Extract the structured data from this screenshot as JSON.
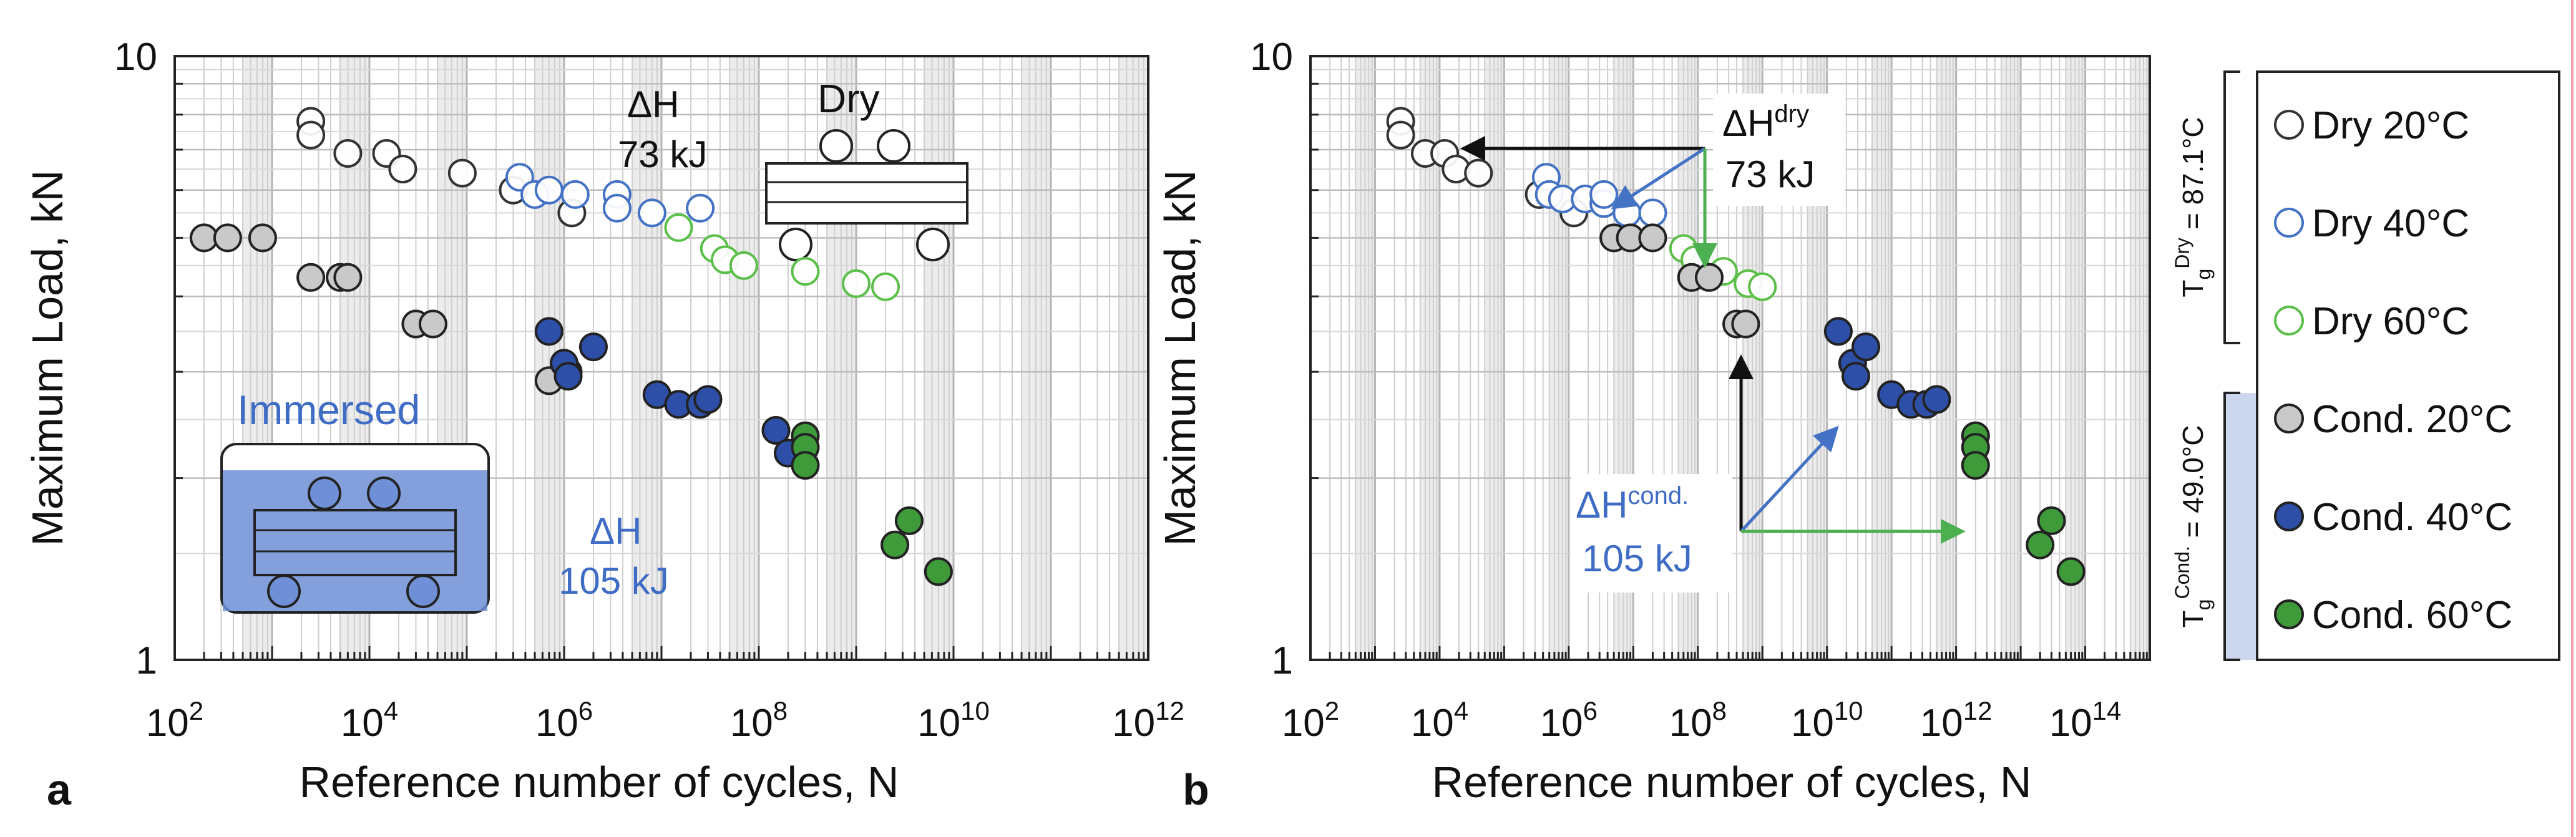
{
  "colors": {
    "dry20": "#333333",
    "dry40": "#4472c4",
    "dry60": "#5cbf4a",
    "cond20_fill": "#c9c9c9",
    "cond40_fill": "#2e4fa8",
    "cond60_fill": "#3f9a3a",
    "blue_text": "#3f6cc4",
    "green_arrow": "#4caf50",
    "immersed_fill": "#6f8fd6",
    "tg_box_fill": "#ccd6ec",
    "grid": "#c8c8c8"
  },
  "chart_data": [
    {
      "panel_label": "a",
      "type": "scatter",
      "x_log": true,
      "y_log": true,
      "xlim": [
        100,
        1000000000000
      ],
      "ylim": [
        1,
        10
      ],
      "xlabel": "Reference number of cycles, N",
      "ylabel": "Maximum Load, kN",
      "ytick_labels": [
        "1",
        "10"
      ],
      "xtick_labels": [
        {
          "base": "10",
          "exp": "2"
        },
        {
          "base": "10",
          "exp": "4"
        },
        {
          "base": "10",
          "exp": "6"
        },
        {
          "base": "10",
          "exp": "8"
        },
        {
          "base": "10",
          "exp": "10"
        },
        {
          "base": "10",
          "exp": "12"
        }
      ],
      "series": [
        {
          "name": "Dry 20°C",
          "key": "dry20",
          "filled": false,
          "points": [
            [
              2500,
              7.8
            ],
            [
              2500,
              7.4
            ],
            [
              6000,
              6.9
            ],
            [
              15000,
              6.9
            ],
            [
              22000,
              6.5
            ],
            [
              90000,
              6.4
            ],
            [
              300000,
              6.0
            ],
            [
              1200000,
              5.5
            ]
          ]
        },
        {
          "name": "Dry 40°C",
          "key": "dry40",
          "filled": false,
          "points": [
            [
              350000,
              6.3
            ],
            [
              500000,
              5.9
            ],
            [
              700000,
              6.0
            ],
            [
              1300000,
              5.9
            ],
            [
              3500000,
              5.9
            ],
            [
              3500000,
              5.6
            ],
            [
              8000000,
              5.5
            ],
            [
              25000000,
              5.6
            ]
          ]
        },
        {
          "name": "Dry 60°C",
          "key": "dry60",
          "filled": false,
          "points": [
            [
              15000000,
              5.2
            ],
            [
              35000000,
              4.8
            ],
            [
              45000000,
              4.6
            ],
            [
              70000000,
              4.5
            ],
            [
              300000000,
              4.4
            ],
            [
              1000000000,
              4.2
            ],
            [
              2000000000,
              4.15
            ]
          ]
        },
        {
          "name": "Cond. 20°C",
          "key": "cond20",
          "filled": true,
          "points": [
            [
              200,
              5.0
            ],
            [
              350,
              5.0
            ],
            [
              800,
              5.0
            ],
            [
              2500,
              4.3
            ],
            [
              5000,
              4.3
            ],
            [
              6000,
              4.3
            ],
            [
              30000,
              3.6
            ],
            [
              45000,
              3.6
            ],
            [
              700000,
              2.9
            ],
            [
              1100000,
              3.0
            ]
          ]
        },
        {
          "name": "Cond. 40°C",
          "key": "cond40",
          "filled": true,
          "points": [
            [
              700000,
              3.5
            ],
            [
              1000000,
              3.1
            ],
            [
              1100000,
              2.95
            ],
            [
              2000000,
              3.3
            ],
            [
              9000000,
              2.75
            ],
            [
              15000000,
              2.65
            ],
            [
              25000000,
              2.65
            ],
            [
              30000000,
              2.7
            ],
            [
              150000000,
              2.4
            ],
            [
              200000000,
              2.2
            ]
          ]
        },
        {
          "name": "Cond. 60°C",
          "key": "cond60",
          "filled": true,
          "points": [
            [
              300000000,
              2.35
            ],
            [
              300000000,
              2.25
            ],
            [
              300000000,
              2.1
            ],
            [
              2500000000,
              1.55
            ],
            [
              3500000000,
              1.7
            ],
            [
              7000000000,
              1.4
            ]
          ]
        }
      ],
      "annotations": {
        "dry_dh": "ΔH",
        "dry_energy": "73 kJ",
        "dry_label": "Dry",
        "immersed_label": "Immersed",
        "cond_dh": "ΔH",
        "cond_energy": "105 kJ"
      }
    },
    {
      "panel_label": "b",
      "type": "scatter",
      "x_log": true,
      "y_log": true,
      "xlim": [
        100,
        1000000000000000
      ],
      "ylim": [
        1,
        10
      ],
      "xlabel": "Reference number of cycles, N",
      "ylabel": "Maximum Load, kN",
      "ytick_labels": [
        "1",
        "10"
      ],
      "xtick_labels": [
        {
          "base": "10",
          "exp": "2"
        },
        {
          "base": "10",
          "exp": "4"
        },
        {
          "base": "10",
          "exp": "6"
        },
        {
          "base": "10",
          "exp": "8"
        },
        {
          "base": "10",
          "exp": "10"
        },
        {
          "base": "10",
          "exp": "12"
        },
        {
          "base": "10",
          "exp": "14"
        }
      ],
      "series": [
        {
          "name": "Dry 20°C",
          "key": "dry20",
          "filled": false,
          "points": [
            [
              2500,
              7.8
            ],
            [
              2500,
              7.4
            ],
            [
              6000,
              6.9
            ],
            [
              12000,
              6.9
            ],
            [
              18000,
              6.5
            ],
            [
              40000,
              6.4
            ],
            [
              350000,
              5.9
            ],
            [
              1200000,
              5.5
            ]
          ]
        },
        {
          "name": "Dry 40°C",
          "key": "dry40",
          "filled": false,
          "points": [
            [
              450000,
              6.3
            ],
            [
              500000,
              5.9
            ],
            [
              800000,
              5.8
            ],
            [
              1800000,
              5.8
            ],
            [
              3500000,
              5.7
            ],
            [
              3500000,
              5.9
            ],
            [
              8000000,
              5.5
            ],
            [
              20000000,
              5.5
            ]
          ]
        },
        {
          "name": "Dry 60°C",
          "key": "dry60",
          "filled": false,
          "points": [
            [
              60000000,
              4.8
            ],
            [
              90000000,
              4.6
            ],
            [
              250000000,
              4.4
            ],
            [
              600000000,
              4.2
            ],
            [
              1000000000,
              4.15
            ]
          ]
        },
        {
          "name": "Cond. 20°C",
          "key": "cond20",
          "filled": true,
          "points": [
            [
              5000000,
              5.0
            ],
            [
              9000000,
              5.0
            ],
            [
              20000000,
              5.0
            ],
            [
              80000000,
              4.3
            ],
            [
              150000000,
              4.3
            ],
            [
              400000000,
              3.6
            ],
            [
              550000000,
              3.6
            ]
          ]
        },
        {
          "name": "Cond. 40°C",
          "key": "cond40",
          "filled": true,
          "points": [
            [
              15000000000,
              3.5
            ],
            [
              25000000000,
              3.1
            ],
            [
              28000000000,
              2.95
            ],
            [
              40000000000,
              3.3
            ],
            [
              100000000000,
              2.75
            ],
            [
              200000000000,
              2.65
            ],
            [
              350000000000,
              2.65
            ],
            [
              500000000000,
              2.7
            ]
          ]
        },
        {
          "name": "Cond. 60°C",
          "key": "cond60",
          "filled": true,
          "points": [
            [
              2000000000000,
              2.35
            ],
            [
              2000000000000,
              2.25
            ],
            [
              2000000000000,
              2.1
            ],
            [
              20000000000000,
              1.55
            ],
            [
              30000000000000,
              1.7
            ],
            [
              60000000000000,
              1.4
            ]
          ]
        }
      ],
      "annotations": {
        "dry_dh": "ΔH",
        "dry_sup": "dry",
        "dry_energy": "73 kJ",
        "cond_dh": "ΔH",
        "cond_sup": "cond.",
        "cond_energy": "105 kJ"
      }
    }
  ],
  "legend": {
    "items": [
      {
        "label": "Dry 20°C",
        "key": "dry20",
        "filled": false
      },
      {
        "label": "Dry 40°C",
        "key": "dry40",
        "filled": false
      },
      {
        "label": "Dry 60°C",
        "key": "dry60",
        "filled": false
      },
      {
        "label": "Cond. 20°C",
        "key": "cond20",
        "filled": true
      },
      {
        "label": "Cond. 40°C",
        "key": "cond40",
        "filled": true
      },
      {
        "label": "Cond. 60°C",
        "key": "cond60",
        "filled": true
      }
    ],
    "tg_dry": {
      "symbol": "T",
      "sub": "g",
      "sup": "Dry",
      "value": " = 87.1°C"
    },
    "tg_cond": {
      "symbol": "T",
      "sub": "g",
      "sup": "Cond.",
      "value": " = 49.0°C"
    }
  }
}
